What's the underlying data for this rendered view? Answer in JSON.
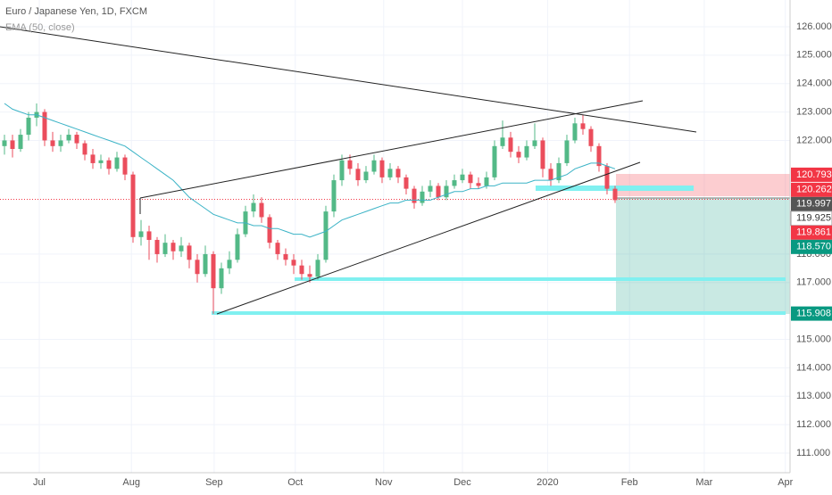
{
  "header": {
    "title": "Euro / Japanese Yen, 1D, FXCM",
    "indicator": "EMA (50, close)"
  },
  "chart_data": {
    "type": "candlestick",
    "up_color": "#53b987",
    "down_color": "#eb4d5c",
    "ema_color": "#3bb3c6",
    "candles": [
      [
        121.8,
        122.2,
        121.5,
        122.0
      ],
      [
        122.0,
        122.2,
        121.4,
        121.7
      ],
      [
        121.7,
        122.4,
        121.6,
        122.2
      ],
      [
        122.2,
        123.0,
        122.0,
        122.8
      ],
      [
        122.8,
        123.3,
        122.5,
        123.0
      ],
      [
        123.0,
        123.1,
        121.8,
        122.0
      ],
      [
        122.0,
        122.3,
        121.6,
        121.8
      ],
      [
        121.8,
        122.2,
        121.6,
        122.0
      ],
      [
        122.0,
        122.4,
        121.9,
        122.2
      ],
      [
        122.2,
        122.3,
        121.7,
        121.9
      ],
      [
        121.9,
        122.0,
        121.3,
        121.5
      ],
      [
        121.5,
        121.7,
        121.0,
        121.2
      ],
      [
        121.2,
        121.5,
        121.0,
        121.3
      ],
      [
        121.3,
        121.4,
        120.8,
        121.0
      ],
      [
        121.0,
        121.6,
        120.9,
        121.4
      ],
      [
        121.4,
        121.5,
        120.6,
        120.8
      ],
      [
        120.8,
        120.9,
        118.4,
        118.6
      ],
      [
        118.6,
        119.2,
        118.3,
        118.8
      ],
      [
        118.8,
        119.0,
        117.8,
        118.5
      ],
      [
        118.5,
        118.6,
        117.7,
        118.0
      ],
      [
        118.0,
        118.7,
        117.9,
        118.4
      ],
      [
        118.4,
        118.5,
        117.8,
        118.1
      ],
      [
        118.1,
        118.6,
        117.9,
        118.3
      ],
      [
        118.3,
        118.4,
        117.5,
        117.8
      ],
      [
        117.8,
        118.0,
        117.0,
        117.3
      ],
      [
        117.3,
        118.3,
        117.2,
        118.0
      ],
      [
        118.0,
        118.1,
        115.9,
        116.8
      ],
      [
        116.8,
        117.7,
        116.6,
        117.5
      ],
      [
        117.5,
        118.1,
        117.3,
        117.8
      ],
      [
        117.8,
        118.9,
        117.7,
        118.7
      ],
      [
        118.7,
        119.7,
        118.6,
        119.5
      ],
      [
        119.5,
        120.1,
        119.3,
        119.8
      ],
      [
        119.8,
        120.0,
        119.1,
        119.3
      ],
      [
        119.3,
        119.4,
        118.2,
        118.4
      ],
      [
        118.4,
        118.5,
        117.8,
        118.0
      ],
      [
        118.0,
        118.2,
        117.6,
        117.8
      ],
      [
        117.8,
        118.0,
        117.3,
        117.6
      ],
      [
        117.6,
        117.8,
        117.1,
        117.3
      ],
      [
        117.3,
        117.6,
        117.0,
        117.2
      ],
      [
        117.2,
        118.0,
        117.1,
        117.8
      ],
      [
        117.8,
        119.7,
        117.7,
        119.5
      ],
      [
        119.5,
        120.8,
        119.3,
        120.6
      ],
      [
        120.6,
        121.5,
        120.4,
        121.3
      ],
      [
        121.3,
        121.5,
        120.8,
        121.0
      ],
      [
        121.0,
        121.2,
        120.4,
        120.6
      ],
      [
        120.6,
        121.1,
        120.5,
        120.9
      ],
      [
        120.9,
        121.5,
        120.8,
        121.3
      ],
      [
        121.3,
        121.4,
        120.5,
        120.7
      ],
      [
        120.7,
        121.2,
        120.6,
        121.0
      ],
      [
        121.0,
        121.1,
        120.5,
        120.7
      ],
      [
        120.7,
        120.8,
        120.1,
        120.3
      ],
      [
        120.3,
        120.4,
        119.6,
        119.8
      ],
      [
        119.8,
        120.4,
        119.7,
        120.2
      ],
      [
        120.2,
        120.6,
        120.0,
        120.4
      ],
      [
        120.4,
        120.5,
        119.9,
        120.0
      ],
      [
        120.0,
        120.6,
        119.9,
        120.4
      ],
      [
        120.4,
        120.8,
        120.3,
        120.6
      ],
      [
        120.6,
        121.0,
        120.5,
        120.8
      ],
      [
        120.8,
        120.9,
        120.3,
        120.5
      ],
      [
        120.5,
        120.7,
        120.3,
        120.4
      ],
      [
        120.4,
        120.9,
        120.3,
        120.7
      ],
      [
        120.7,
        122.0,
        120.6,
        121.8
      ],
      [
        121.8,
        122.7,
        121.7,
        122.1
      ],
      [
        122.1,
        122.3,
        121.4,
        121.6
      ],
      [
        121.6,
        121.8,
        121.2,
        121.4
      ],
      [
        121.4,
        122.0,
        121.3,
        121.8
      ],
      [
        121.8,
        122.6,
        121.7,
        122.0
      ],
      [
        122.0,
        122.1,
        120.7,
        121.0
      ],
      [
        121.0,
        121.2,
        120.4,
        120.6
      ],
      [
        120.6,
        121.4,
        120.5,
        121.2
      ],
      [
        121.2,
        122.2,
        121.1,
        122.0
      ],
      [
        122.0,
        122.8,
        121.9,
        122.6
      ],
      [
        122.6,
        122.9,
        122.2,
        122.4
      ],
      [
        122.4,
        122.5,
        121.6,
        121.8
      ],
      [
        121.8,
        121.9,
        120.9,
        121.1
      ],
      [
        121.1,
        121.2,
        120.1,
        120.3
      ],
      [
        120.3,
        120.4,
        119.8,
        119.9
      ]
    ],
    "ema": [
      123.3,
      123.1,
      123.0,
      122.9,
      122.9,
      122.8,
      122.7,
      122.6,
      122.5,
      122.4,
      122.3,
      122.2,
      122.1,
      122.0,
      121.9,
      121.8,
      121.6,
      121.4,
      121.2,
      121.0,
      120.8,
      120.6,
      120.3,
      120.0,
      119.8,
      119.6,
      119.4,
      119.3,
      119.2,
      119.1,
      119.1,
      119.0,
      119.0,
      118.9,
      118.9,
      118.8,
      118.7,
      118.7,
      118.6,
      118.7,
      118.8,
      119.0,
      119.2,
      119.3,
      119.4,
      119.5,
      119.6,
      119.7,
      119.8,
      119.8,
      119.9,
      119.9,
      119.9,
      119.9,
      120.0,
      120.1,
      120.2,
      120.2,
      120.3,
      120.3,
      120.4,
      120.4,
      120.5,
      120.5,
      120.5,
      120.5,
      120.6,
      120.6,
      120.6,
      120.7,
      120.8,
      121.0,
      121.1,
      121.2,
      121.2,
      121.1,
      121.0
    ],
    "xlim": [
      -0.556,
      97.78
    ],
    "xticks": [
      {
        "value": 4.33,
        "label": "Jul"
      },
      {
        "value": 15.8,
        "label": "Aug"
      },
      {
        "value": 26.1,
        "label": "Sep"
      },
      {
        "value": 36.2,
        "label": "Oct"
      },
      {
        "value": 47.2,
        "label": "Nov"
      },
      {
        "value": 57,
        "label": "Dec"
      },
      {
        "value": 67.6,
        "label": "2020"
      },
      {
        "value": 77.8,
        "label": "Feb"
      },
      {
        "value": 87.1,
        "label": "Mar"
      },
      {
        "value": 97.2,
        "label": "Apr"
      }
    ],
    "ylim": [
      110.31,
      126.94
    ],
    "yticks": [
      {
        "value": 111,
        "label": "111.000"
      },
      {
        "value": 112,
        "label": "112.000"
      },
      {
        "value": 113,
        "label": "113.000"
      },
      {
        "value": 114,
        "label": "114.000"
      },
      {
        "value": 115,
        "label": "115.000"
      },
      {
        "value": 117,
        "label": "117.000"
      },
      {
        "value": 118,
        "label": "118.000"
      },
      {
        "value": 122,
        "label": "122.000"
      },
      {
        "value": 123,
        "label": "123.000"
      },
      {
        "value": 124,
        "label": "124.000"
      },
      {
        "value": 125,
        "label": "125.000"
      },
      {
        "value": 126,
        "label": "126.000"
      }
    ],
    "price_markers": [
      {
        "value": 120.793,
        "color": "#f23645"
      },
      {
        "value": 120.262,
        "color": "#f23645"
      },
      {
        "value": 119.997,
        "color": "#555555"
      },
      {
        "value": 119.925,
        "color": "#ffffff"
      },
      {
        "value": 119.861,
        "color": "#f23645"
      },
      {
        "value": 118.57,
        "label": "118.570",
        "color": "#089981"
      },
      {
        "value": 115.908,
        "color": "#089981"
      }
    ]
  }
}
